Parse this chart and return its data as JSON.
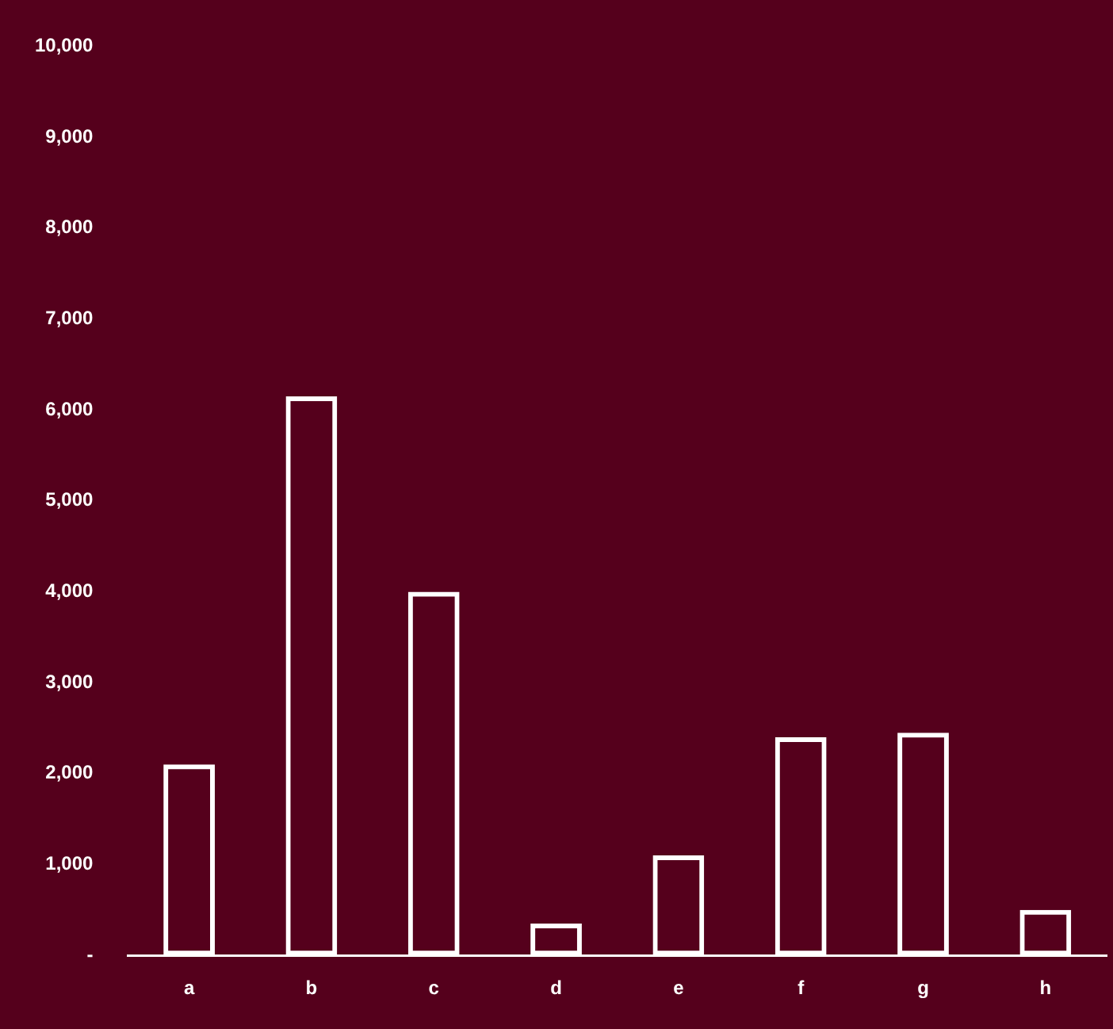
{
  "chart_data": {
    "type": "bar",
    "categories": [
      "a",
      "b",
      "c",
      "d",
      "e",
      "f",
      "g",
      "h"
    ],
    "values": [
      2100,
      6150,
      4000,
      350,
      1100,
      2400,
      2450,
      500
    ],
    "color": "#ffffff",
    "ylim": [
      0,
      10000
    ],
    "yticks": [
      {
        "value": 0,
        "label": "-"
      },
      {
        "value": 1000,
        "label": "1,000"
      },
      {
        "value": 2000,
        "label": "2,000"
      },
      {
        "value": 3000,
        "label": "3,000"
      },
      {
        "value": 4000,
        "label": "4,000"
      },
      {
        "value": 5000,
        "label": "5,000"
      },
      {
        "value": 6000,
        "label": "6,000"
      },
      {
        "value": 7000,
        "label": "7,000"
      },
      {
        "value": 8000,
        "label": "8,000"
      },
      {
        "value": 9000,
        "label": "9,000"
      },
      {
        "value": 10000,
        "label": "10,000"
      }
    ],
    "grid": false,
    "legend": false
  }
}
